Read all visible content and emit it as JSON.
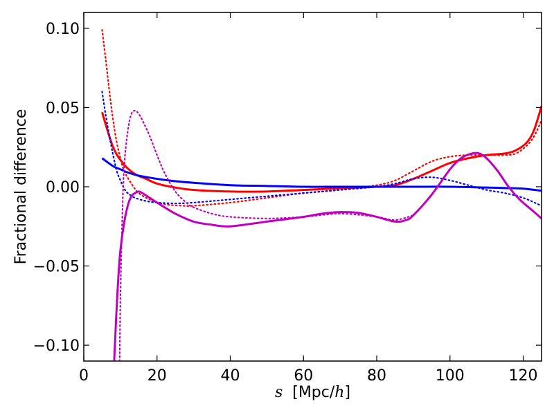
{
  "chart_data": {
    "type": "line",
    "title": "",
    "xlabel": {
      "var": "s",
      "prefix": "[Mpc/",
      "unit_var": "h",
      "suffix": "]"
    },
    "ylabel": "Fractional difference",
    "xlim": [
      0,
      125
    ],
    "ylim": [
      -0.11,
      0.11
    ],
    "x_ticks": [
      0,
      20,
      40,
      60,
      80,
      100,
      120
    ],
    "x_tick_labels": [
      "0",
      "20",
      "40",
      "60",
      "80",
      "100",
      "120"
    ],
    "y_ticks": [
      -0.1,
      -0.05,
      0.0,
      0.05,
      0.1
    ],
    "y_tick_labels": [
      "−0.10",
      "−0.05",
      "0.00",
      "0.05",
      "0.10"
    ],
    "grid": false,
    "legend": "none",
    "series": [
      {
        "name": "red-solid",
        "color": "#ff0000",
        "style": "solid",
        "x": [
          5,
          8,
          11,
          14,
          17,
          20,
          25,
          30,
          40,
          50,
          60,
          70,
          80,
          85,
          90,
          95,
          100,
          105,
          110,
          115,
          118,
          121,
          123,
          125
        ],
        "y": [
          0.047,
          0.025,
          0.014,
          0.008,
          0.005,
          0.002,
          -0.0005,
          -0.002,
          -0.003,
          -0.003,
          -0.002,
          -0.001,
          0.0,
          0.001,
          0.005,
          0.01,
          0.015,
          0.018,
          0.02,
          0.021,
          0.023,
          0.028,
          0.036,
          0.051
        ]
      },
      {
        "name": "red-dotted",
        "color": "#ff0000",
        "style": "dotted",
        "x": [
          5,
          6,
          7,
          8,
          9,
          10,
          11,
          13,
          15,
          18,
          22,
          27,
          30,
          40,
          50,
          60,
          70,
          80,
          85,
          90,
          95,
          100,
          105,
          110,
          115,
          118,
          121,
          123,
          125
        ],
        "y": [
          0.099,
          0.08,
          0.06,
          0.042,
          0.028,
          0.018,
          0.01,
          0.002,
          -0.004,
          -0.008,
          -0.011,
          -0.012,
          -0.012,
          -0.01,
          -0.007,
          -0.004,
          -0.002,
          0.001,
          0.004,
          0.01,
          0.016,
          0.019,
          0.02,
          0.02,
          0.02,
          0.021,
          0.026,
          0.032,
          0.042
        ]
      },
      {
        "name": "blue-solid",
        "color": "#0000ff",
        "style": "solid",
        "x": [
          5,
          8,
          10,
          12,
          15,
          20,
          25,
          30,
          40,
          50,
          60,
          70,
          80,
          90,
          100,
          110,
          115,
          120,
          125
        ],
        "y": [
          0.018,
          0.013,
          0.011,
          0.009,
          0.007,
          0.005,
          0.0035,
          0.0025,
          0.001,
          0.0005,
          0.0,
          0.0,
          0.0,
          0.0,
          0.0,
          -0.0005,
          -0.0008,
          -0.0012,
          -0.0025
        ]
      },
      {
        "name": "blue-dotted",
        "color": "#0000ff",
        "style": "dotted",
        "x": [
          5,
          6,
          7,
          8,
          9,
          10,
          11,
          12,
          14,
          17,
          20,
          25,
          30,
          40,
          50,
          60,
          70,
          80,
          85,
          90,
          95,
          100,
          105,
          110,
          115,
          120,
          125
        ],
        "y": [
          0.06,
          0.045,
          0.032,
          0.02,
          0.01,
          0.004,
          -0.001,
          -0.004,
          -0.007,
          -0.009,
          -0.01,
          -0.0105,
          -0.01,
          -0.008,
          -0.006,
          -0.004,
          -0.002,
          0.0,
          0.002,
          0.005,
          0.006,
          0.004,
          0.001,
          -0.002,
          -0.004,
          -0.007,
          -0.012
        ]
      },
      {
        "name": "magenta-solid",
        "color": "#bf00bf",
        "style": "solid",
        "x": [
          8.3,
          9,
          9.5,
          10,
          11,
          12,
          13,
          14,
          15,
          16,
          18,
          20,
          25,
          30,
          35,
          40,
          50,
          60,
          65,
          70,
          75,
          80,
          85,
          88,
          90,
          95,
          100,
          103,
          106,
          108,
          110,
          113,
          116,
          119,
          122,
          125
        ],
        "y": [
          -0.11,
          -0.075,
          -0.055,
          -0.04,
          -0.023,
          -0.012,
          -0.006,
          -0.004,
          -0.003,
          -0.004,
          -0.007,
          -0.01,
          -0.017,
          -0.022,
          -0.024,
          -0.025,
          -0.022,
          -0.019,
          -0.017,
          -0.016,
          -0.0165,
          -0.019,
          -0.022,
          -0.021,
          -0.018,
          -0.005,
          0.011,
          0.018,
          0.021,
          0.021,
          0.018,
          0.01,
          0.0,
          -0.008,
          -0.014,
          -0.02
        ]
      },
      {
        "name": "magenta-dotted",
        "color": "#bf00bf",
        "style": "dotted",
        "x": [
          9.8,
          10,
          10.5,
          11,
          12,
          13,
          14,
          15,
          16,
          18,
          20,
          22,
          25,
          28,
          30,
          35,
          40,
          50,
          60,
          70,
          80,
          85,
          90
        ],
        "y": [
          -0.11,
          -0.07,
          -0.02,
          0.012,
          0.035,
          0.046,
          0.048,
          0.046,
          0.042,
          0.032,
          0.02,
          0.009,
          -0.003,
          -0.01,
          -0.013,
          -0.017,
          -0.019,
          -0.02,
          -0.019,
          -0.017,
          -0.019,
          -0.021,
          -0.018
        ]
      }
    ]
  }
}
